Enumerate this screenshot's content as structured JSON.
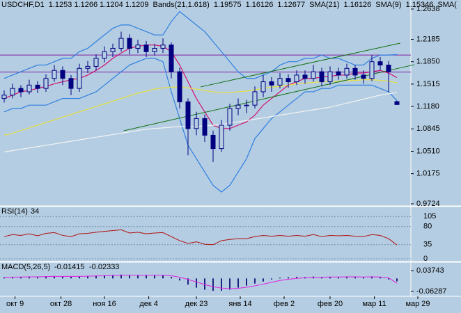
{
  "chart_data": {
    "type": "candlestick",
    "header": {
      "symbol": "USDCHF,D1",
      "ohlc": "1.1253 1.1266 1.1204 1.1209",
      "bands": "Bands(21,1.618)",
      "band_upper": "1.19575",
      "band_mid": "1.16126",
      "band_lower": "1.12677",
      "sma21": "SMA(21)",
      "sma21_value": "1.16126",
      "sma9": "SMA(9)",
      "sma9_value": "1.15346",
      "sma_more": "SMA("
    },
    "candles": [
      [
        1.13,
        1.142,
        1.124,
        1.135
      ],
      [
        1.135,
        1.152,
        1.13,
        1.145
      ],
      [
        1.145,
        1.15,
        1.132,
        1.14
      ],
      [
        1.14,
        1.158,
        1.136,
        1.15
      ],
      [
        1.15,
        1.156,
        1.138,
        1.145
      ],
      [
        1.145,
        1.166,
        1.14,
        1.16
      ],
      [
        1.16,
        1.18,
        1.155,
        1.172
      ],
      [
        1.172,
        1.178,
        1.15,
        1.16
      ],
      [
        1.16,
        1.165,
        1.135,
        1.145
      ],
      [
        1.145,
        1.182,
        1.14,
        1.175
      ],
      [
        1.175,
        1.186,
        1.168,
        1.178
      ],
      [
        1.178,
        1.196,
        1.172,
        1.19
      ],
      [
        1.19,
        1.208,
        1.184,
        1.2
      ],
      [
        1.2,
        1.212,
        1.192,
        1.205
      ],
      [
        1.205,
        1.23,
        1.2,
        1.22
      ],
      [
        1.22,
        1.226,
        1.196,
        1.205
      ],
      [
        1.205,
        1.218,
        1.198,
        1.21
      ],
      [
        1.21,
        1.216,
        1.192,
        1.2
      ],
      [
        1.2,
        1.212,
        1.194,
        1.205
      ],
      [
        1.205,
        1.22,
        1.198,
        1.21
      ],
      [
        1.21,
        1.214,
        1.16,
        1.17
      ],
      [
        1.17,
        1.176,
        1.115,
        1.125
      ],
      [
        1.125,
        1.13,
        1.045,
        1.085
      ],
      [
        1.085,
        1.11,
        1.075,
        1.1
      ],
      [
        1.1,
        1.106,
        1.065,
        1.075
      ],
      [
        1.075,
        1.082,
        1.035,
        1.055
      ],
      [
        1.055,
        1.098,
        1.05,
        1.09
      ],
      [
        1.09,
        1.122,
        1.082,
        1.115
      ],
      [
        1.115,
        1.13,
        1.105,
        1.12
      ],
      [
        1.12,
        1.128,
        1.108,
        1.12
      ],
      [
        1.12,
        1.148,
        1.115,
        1.14
      ],
      [
        1.14,
        1.165,
        1.132,
        1.155
      ],
      [
        1.155,
        1.162,
        1.14,
        1.15
      ],
      [
        1.15,
        1.168,
        1.145,
        1.16
      ],
      [
        1.16,
        1.166,
        1.146,
        1.155
      ],
      [
        1.155,
        1.172,
        1.15,
        1.165
      ],
      [
        1.165,
        1.172,
        1.152,
        1.16
      ],
      [
        1.16,
        1.18,
        1.155,
        1.17
      ],
      [
        1.17,
        1.176,
        1.148,
        1.155
      ],
      [
        1.155,
        1.178,
        1.15,
        1.17
      ],
      [
        1.17,
        1.176,
        1.158,
        1.165
      ],
      [
        1.165,
        1.182,
        1.16,
        1.175
      ],
      [
        1.175,
        1.18,
        1.158,
        1.165
      ],
      [
        1.165,
        1.172,
        1.152,
        1.16
      ],
      [
        1.16,
        1.195,
        1.156,
        1.185
      ],
      [
        1.185,
        1.192,
        1.172,
        1.18
      ],
      [
        1.18,
        1.186,
        1.14,
        1.17
      ],
      [
        1.1253,
        1.1266,
        1.1204,
        1.1209
      ]
    ],
    "ylim": [
      0.9693,
      1.2773
    ],
    "yticks": [
      {
        "value": 1.2638,
        "label": "1.2638"
      },
      {
        "value": 1.2185,
        "label": "1.2185"
      },
      {
        "value": 1.185,
        "label": "1.1850"
      },
      {
        "value": 1.1515,
        "label": "1.1515"
      },
      {
        "value": 1.118,
        "label": "1.1180"
      },
      {
        "value": 1.0845,
        "label": "1.0845"
      },
      {
        "value": 1.051,
        "label": "1.0510"
      },
      {
        "value": 1.0175,
        "label": "1.0175"
      },
      {
        "value": 0.9724,
        "label": "0.9724"
      }
    ],
    "xticks": [
      {
        "value": 1.3,
        "label": "окт 9"
      },
      {
        "value": 6.8,
        "label": "окт 28"
      },
      {
        "value": 12,
        "label": "ноя 16"
      },
      {
        "value": 17.3,
        "label": "дек 4"
      },
      {
        "value": 23,
        "label": "дек 23"
      },
      {
        "value": 28.25,
        "label": "янв 14"
      },
      {
        "value": 33.5,
        "label": "фев 2"
      },
      {
        "value": 39,
        "label": "фев 20"
      },
      {
        "value": 44.3,
        "label": "мар 11"
      },
      {
        "value": 49.5,
        "label": "мар 29"
      }
    ],
    "candle_color": "#000080",
    "series": [
      {
        "color": "#2f7fe0",
        "values": [
          1.16,
          1.165,
          1.17,
          1.175,
          1.18,
          1.18,
          1.185,
          1.19,
          1.19,
          1.2,
          1.205,
          1.215,
          1.225,
          1.235,
          1.24,
          1.24,
          1.235,
          1.23,
          1.225,
          1.225,
          1.245,
          1.26,
          1.25,
          1.24,
          1.23,
          1.215,
          1.2,
          1.185,
          1.17,
          1.16,
          1.16,
          1.165,
          1.17,
          1.18,
          1.185,
          1.185,
          1.19,
          1.19,
          1.195,
          1.19,
          1.19,
          1.185,
          1.18,
          1.18,
          1.19,
          1.195,
          1.195,
          1.19575
        ]
      },
      {
        "color": "#2f7fe0",
        "values": [
          1.11,
          1.115,
          1.115,
          1.12,
          1.12,
          1.12,
          1.125,
          1.13,
          1.13,
          1.13,
          1.135,
          1.14,
          1.15,
          1.16,
          1.17,
          1.18,
          1.185,
          1.19,
          1.19,
          1.185,
          1.14,
          1.1,
          1.06,
          1.04,
          1.02,
          1.0,
          0.99,
          1.0,
          1.02,
          1.04,
          1.07,
          1.085,
          1.1,
          1.11,
          1.12,
          1.13,
          1.14,
          1.14,
          1.145,
          1.145,
          1.15,
          1.15,
          1.15,
          1.15,
          1.15,
          1.145,
          1.14,
          1.12677
        ]
      },
      {
        "color": "#d01070",
        "values": [
          1.13,
          1.135,
          1.14,
          1.142,
          1.145,
          1.148,
          1.152,
          1.155,
          1.158,
          1.16,
          1.165,
          1.172,
          1.18,
          1.19,
          1.198,
          1.205,
          1.208,
          1.21,
          1.21,
          1.208,
          1.2,
          1.18,
          1.155,
          1.13,
          1.11,
          1.09,
          1.085,
          1.085,
          1.09,
          1.095,
          1.105,
          1.12,
          1.13,
          1.14,
          1.15,
          1.155,
          1.16,
          1.16,
          1.162,
          1.163,
          1.165,
          1.165,
          1.168,
          1.168,
          1.17,
          1.172,
          1.168,
          1.16126
        ]
      },
      {
        "color": "#e8e040",
        "values": [
          1.075,
          1.078,
          1.082,
          1.086,
          1.09,
          1.094,
          1.098,
          1.102,
          1.106,
          1.11,
          1.114,
          1.118,
          1.122,
          1.126,
          1.13,
          1.134,
          1.138,
          1.141,
          1.144,
          1.146,
          1.147,
          1.147,
          1.146,
          1.144,
          1.142,
          1.14,
          1.139,
          1.139,
          1.14,
          1.141,
          1.143,
          1.145,
          1.147,
          1.148,
          1.15,
          1.152,
          1.153,
          1.154,
          1.155,
          1.155,
          1.156,
          1.157,
          1.157,
          1.158,
          1.158,
          1.157,
          1.156,
          1.15346
        ]
      },
      {
        "color": "#f4f4f4",
        "values": [
          1.05,
          1.052,
          1.054,
          1.056,
          1.058,
          1.06,
          1.062,
          1.064,
          1.066,
          1.068,
          1.07,
          1.072,
          1.074,
          1.076,
          1.078,
          1.08,
          1.082,
          1.084,
          1.085,
          1.086,
          1.087,
          1.088,
          1.088,
          1.088,
          1.089,
          1.09,
          1.091,
          1.093,
          1.095,
          1.097,
          1.099,
          1.101,
          1.103,
          1.105,
          1.107,
          1.109,
          1.111,
          1.113,
          1.115,
          1.117,
          1.12,
          1.123,
          1.126,
          1.129,
          1.132,
          1.135,
          1.137,
          1.139
        ]
      }
    ],
    "levels": [
      {
        "value": 1.195,
        "color": "#8020a0"
      },
      {
        "value": 1.1695,
        "color": "#8020a0"
      }
    ],
    "trendlines": [
      {
        "color": "#107010",
        "points": [
          [
            14.3,
            1.0817
          ],
          [
            49.1,
            1.1806
          ]
        ]
      },
      {
        "color": "#107010",
        "points": [
          [
            23.5,
            1.1473
          ],
          [
            47.4,
            1.2128
          ]
        ]
      }
    ],
    "rsi": {
      "label": "RSI(14)",
      "value_label": "34",
      "color": "#b01010",
      "ylim": [
        -7,
        128
      ],
      "yticks": [
        105,
        80,
        35,
        0
      ],
      "values": [
        55,
        60,
        58,
        62,
        57,
        63,
        65,
        58,
        55,
        62,
        63,
        66,
        68,
        70,
        72,
        64,
        66,
        62,
        64,
        65,
        55,
        45,
        38,
        42,
        36,
        35,
        45,
        48,
        50,
        50,
        55,
        58,
        56,
        58,
        56,
        58,
        56,
        60,
        55,
        58,
        57,
        58,
        56,
        55,
        60,
        58,
        50,
        34
      ]
    },
    "macd": {
      "label": "MACD(5,26,5)",
      "value_label": "-0.01415",
      "signal_label": "-0.02333",
      "ylim": [
        -0.087,
        0.0755
      ],
      "yticks": [
        {
          "value": 0.03743,
          "label": "0.03743"
        },
        {
          "value": -0.06287,
          "label": "-0.06287"
        }
      ],
      "color": "#202080",
      "signal_color": "#e020e0",
      "values": [
        0.006,
        0.008,
        0.007,
        0.009,
        0.008,
        0.01,
        0.012,
        0.01,
        0.008,
        0.011,
        0.012,
        0.014,
        0.016,
        0.017,
        0.019,
        0.016,
        0.017,
        0.015,
        0.016,
        0.016,
        0.008,
        -0.01,
        -0.03,
        -0.045,
        -0.055,
        -0.06,
        -0.06,
        -0.055,
        -0.045,
        -0.035,
        -0.025,
        -0.015,
        -0.005,
        0.004,
        0.006,
        0.008,
        0.007,
        0.009,
        0.007,
        0.008,
        0.007,
        0.009,
        0.007,
        0.006,
        0.01,
        0.006,
        -0.005,
        -0.01415
      ],
      "signal": [
        0.005,
        0.006,
        0.007,
        0.008,
        0.008,
        0.009,
        0.01,
        0.01,
        0.01,
        0.01,
        0.011,
        0.012,
        0.013,
        0.014,
        0.016,
        0.016,
        0.016,
        0.016,
        0.016,
        0.016,
        0.013,
        0.006,
        -0.005,
        -0.017,
        -0.03,
        -0.04,
        -0.047,
        -0.05,
        -0.048,
        -0.043,
        -0.036,
        -0.028,
        -0.019,
        -0.01,
        -0.004,
        0.0,
        0.003,
        0.005,
        0.006,
        0.007,
        0.007,
        0.008,
        0.008,
        0.007,
        0.008,
        0.007,
        0.003,
        -0.02333
      ]
    }
  }
}
